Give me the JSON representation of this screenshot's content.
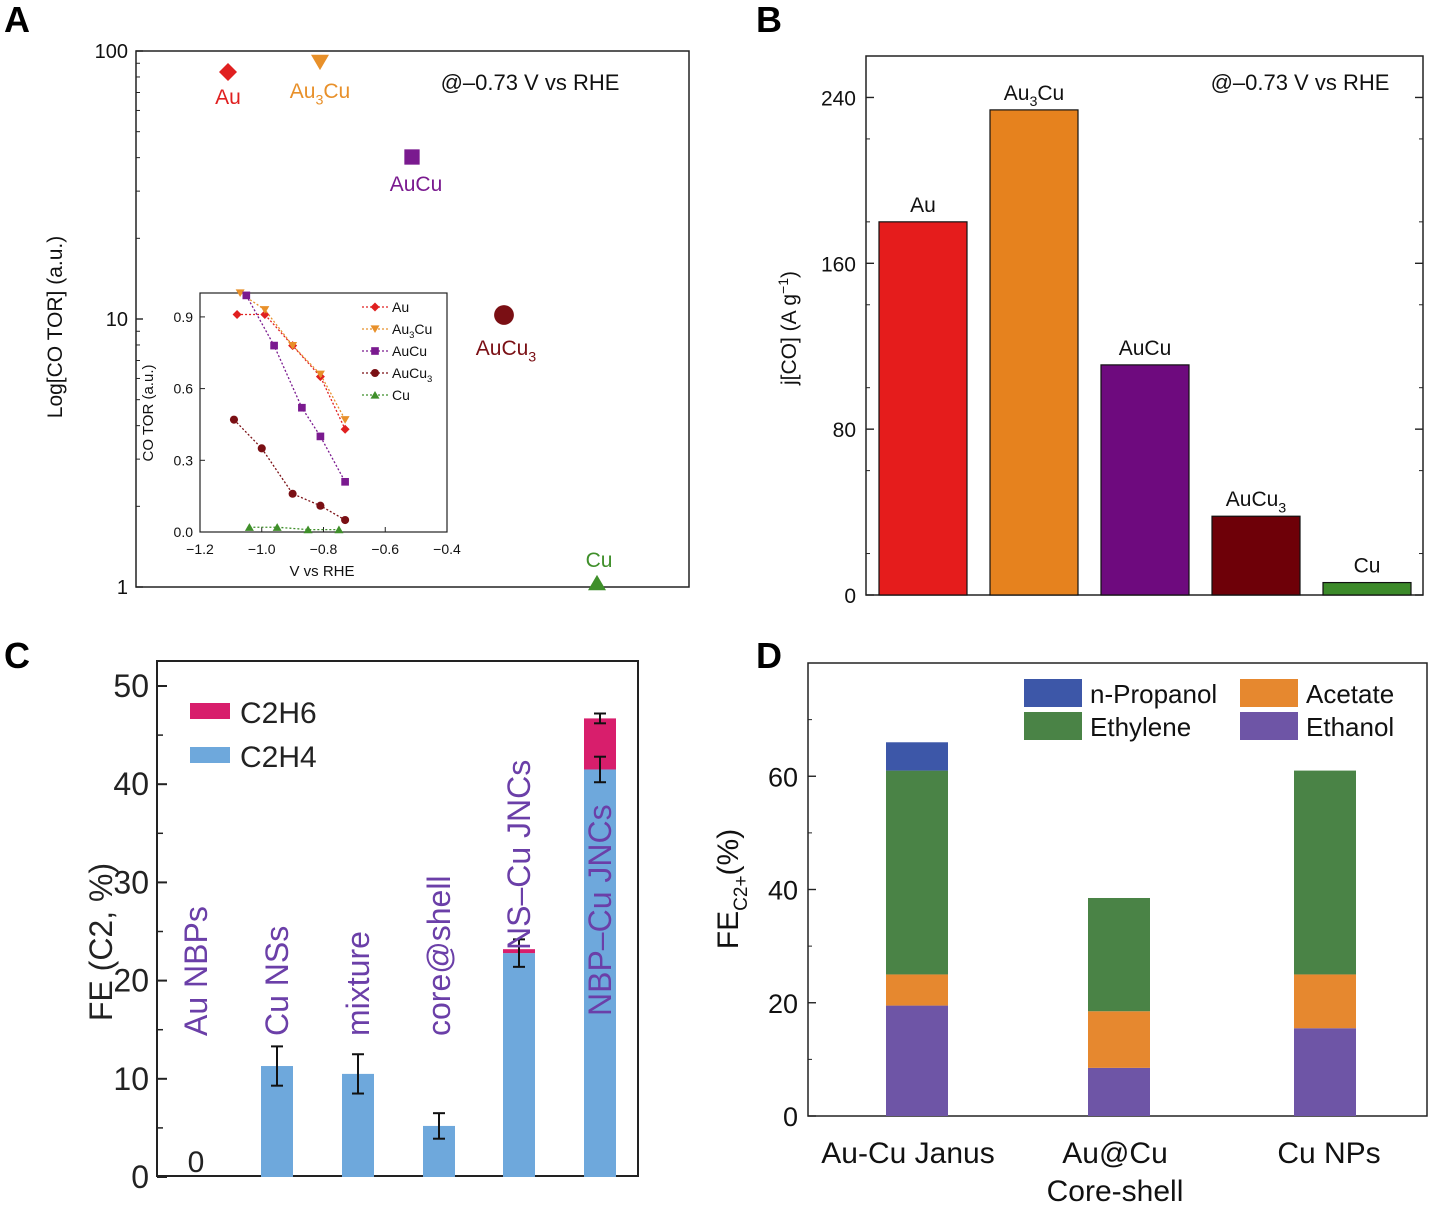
{
  "chart_data": [
    {
      "id": "A",
      "panel_label": "A",
      "type": "scatter",
      "yscale": "log",
      "ylabel": "Log[CO TOR] (a.u.)",
      "yticks": [
        "1",
        "10",
        "100"
      ],
      "ylim": [
        1,
        100
      ],
      "annotation": "@–0.73 V vs RHE",
      "points": [
        {
          "name": "Au",
          "label": "Au",
          "sub": "",
          "tail": "",
          "y": 85,
          "marker": "diamond",
          "color": "#e02020"
        },
        {
          "name": "Au3Cu",
          "label": "Au",
          "sub": "3",
          "tail": "Cu",
          "y": 95,
          "marker": "triangle-down",
          "color": "#e8902a"
        },
        {
          "name": "AuCu",
          "label": "AuCu",
          "sub": "",
          "tail": "",
          "y": 40,
          "marker": "square",
          "color": "#7a1a8f"
        },
        {
          "name": "AuCu3",
          "label": "AuCu",
          "sub": "3",
          "tail": "",
          "y": 10,
          "marker": "circle",
          "color": "#7a0f14"
        },
        {
          "name": "Cu",
          "label": "Cu",
          "sub": "",
          "tail": "",
          "y": 1,
          "marker": "triangle-up",
          "color": "#3f8f2a"
        }
      ],
      "inset": {
        "type": "line",
        "xlabel": "V vs RHE",
        "ylabel": "CO TOR (a.u.)",
        "xlim": [
          -1.2,
          -0.4
        ],
        "ylim": [
          0,
          1.0
        ],
        "xticks": [
          -1.2,
          -1.0,
          -0.8,
          -0.6,
          -0.4
        ],
        "xtick_labels": [
          "−1.2",
          "−1.0",
          "−0.8",
          "−0.6",
          "−0.4"
        ],
        "yticks": [
          0.0,
          0.3,
          0.6,
          0.9
        ],
        "ytick_labels": [
          "0.0",
          "0.3",
          "0.6",
          "0.9"
        ],
        "series": [
          {
            "name": "Au",
            "label": "Au",
            "sub": "",
            "tail": "",
            "marker": "diamond",
            "color": "#e02020",
            "x": [
              -1.08,
              -0.99,
              -0.9,
              -0.81,
              -0.73
            ],
            "y": [
              0.91,
              0.91,
              0.78,
              0.65,
              0.43
            ]
          },
          {
            "name": "Au3Cu",
            "label": "Au",
            "sub": "3",
            "tail": "Cu",
            "marker": "triangle-down",
            "color": "#e8902a",
            "x": [
              -1.07,
              -0.99,
              -0.9,
              -0.81,
              -0.73
            ],
            "y": [
              1.0,
              0.93,
              0.78,
              0.66,
              0.47
            ]
          },
          {
            "name": "AuCu",
            "label": "AuCu",
            "sub": "",
            "tail": "",
            "marker": "square",
            "color": "#7a1a8f",
            "x": [
              -1.05,
              -0.96,
              -0.87,
              -0.81,
              -0.73
            ],
            "y": [
              0.99,
              0.78,
              0.52,
              0.4,
              0.21
            ]
          },
          {
            "name": "AuCu3",
            "label": "AuCu",
            "sub": "3",
            "tail": "",
            "marker": "circle",
            "color": "#7a0f14",
            "x": [
              -1.09,
              -1.0,
              -0.9,
              -0.81,
              -0.73
            ],
            "y": [
              0.47,
              0.35,
              0.16,
              0.11,
              0.05
            ]
          },
          {
            "name": "Cu",
            "label": "Cu",
            "sub": "",
            "tail": "",
            "marker": "triangle-up",
            "color": "#3f8f2a",
            "x": [
              -1.04,
              -0.95,
              -0.85,
              -0.75
            ],
            "y": [
              0.02,
              0.02,
              0.01,
              0.01
            ]
          }
        ]
      }
    },
    {
      "id": "B",
      "panel_label": "B",
      "type": "bar",
      "ylabel": "j[CO] (A g",
      "ylabel_sup": "−1",
      "ylabel_tail": ")",
      "ylim": [
        0,
        260
      ],
      "yticks": [
        0,
        80,
        160,
        240
      ],
      "ytick_labels": [
        "0",
        "80",
        "160",
        "240"
      ],
      "annotation": "@–0.73 V vs RHE",
      "bars": [
        {
          "name": "Au",
          "label": "Au",
          "sub": "",
          "tail": "",
          "value": 180,
          "color": "#e51c1c"
        },
        {
          "name": "Au3Cu",
          "label": "Au",
          "sub": "3",
          "tail": "Cu",
          "value": 234,
          "color": "#e6821e"
        },
        {
          "name": "AuCu",
          "label": "AuCu",
          "sub": "",
          "tail": "",
          "value": 111,
          "color": "#6e0a7e"
        },
        {
          "name": "AuCu3",
          "label": "AuCu",
          "sub": "3",
          "tail": "",
          "value": 38,
          "color": "#6e0008"
        },
        {
          "name": "Cu",
          "label": "Cu",
          "sub": "",
          "tail": "",
          "value": 6,
          "color": "#3c8a2a"
        }
      ]
    },
    {
      "id": "C",
      "panel_label": "C",
      "type": "bar",
      "stacked": true,
      "ylabel": "FE (C2, %)",
      "ylim": [
        0,
        50
      ],
      "yticks": [
        0,
        10,
        20,
        30,
        40,
        50
      ],
      "ytick_labels": [
        "0",
        "10",
        "20",
        "30",
        "40",
        "50"
      ],
      "categories": [
        "Au NBPs",
        "Cu NSs",
        "mixture",
        "core@shell",
        "NS–Cu JNCs",
        "NBP–Cu JNCs"
      ],
      "series": [
        {
          "name": "C2H4",
          "label": "C2H4",
          "color": "#6ea8dc",
          "values": [
            0,
            11.3,
            10.5,
            5.2,
            22.8,
            41.5
          ]
        },
        {
          "name": "C2H6",
          "label": "C2H6",
          "color": "#d81e6c",
          "values": [
            0,
            0,
            0,
            0,
            0.4,
            5.2
          ]
        }
      ],
      "error_bars": [
        0,
        2.0,
        2.0,
        1.3,
        1.4,
        1.3
      ],
      "zero_label": "0"
    },
    {
      "id": "D",
      "panel_label": "D",
      "type": "bar",
      "stacked": true,
      "ylabel": "FE",
      "ylabel_sub": "C2+",
      "ylabel_tail": "(%)",
      "ylim": [
        0,
        80
      ],
      "yticks": [
        0,
        20,
        40,
        60
      ],
      "ytick_labels": [
        "0",
        "20",
        "40",
        "60"
      ],
      "categories": [
        {
          "line1": "Au-Cu Janus",
          "line2": ""
        },
        {
          "line1": "Au@Cu",
          "line2": "Core-shell"
        },
        {
          "line1": "Cu NPs",
          "line2": ""
        }
      ],
      "series": [
        {
          "name": "Ethanol",
          "label": "Ethanol",
          "color": "#6e55a6",
          "values": [
            19.5,
            8.5,
            15.5
          ]
        },
        {
          "name": "Acetate",
          "label": "Acetate",
          "color": "#e6882f",
          "values": [
            5.5,
            10,
            9.5
          ]
        },
        {
          "name": "Ethylene",
          "label": "Ethylene",
          "color": "#4a8346",
          "values": [
            36,
            20,
            36
          ]
        },
        {
          "name": "n-Propanol",
          "label": "n-Propanol",
          "color": "#3d57a8",
          "values": [
            5,
            0,
            0
          ]
        }
      ]
    }
  ]
}
